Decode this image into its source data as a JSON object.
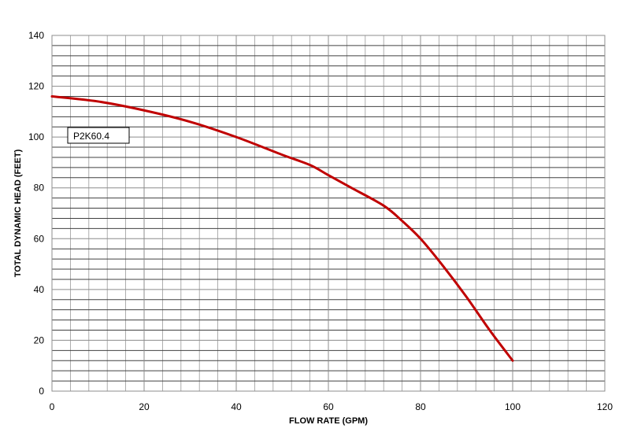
{
  "chart_data": {
    "type": "line",
    "title": "",
    "xlabel": "FLOW RATE (GPM)",
    "ylabel": "TOTAL DYNAMIC HEAD (FEET)",
    "xlim": [
      0,
      120
    ],
    "ylim": [
      0,
      140
    ],
    "x_ticks": [
      0,
      20,
      40,
      60,
      80,
      100,
      120
    ],
    "y_ticks": [
      0,
      20,
      40,
      60,
      80,
      100,
      120,
      140
    ],
    "x_ticks_labels": [
      "0",
      "20",
      "40",
      "60",
      "80",
      "100",
      "120"
    ],
    "y_ticks_labels": [
      "0",
      "20",
      "40",
      "60",
      "80",
      "100",
      "120",
      "140"
    ],
    "grid": true,
    "grid_minor_x_step": 4,
    "grid_minor_y_step": 4,
    "legend_placement": "upper-left",
    "series": [
      {
        "name": "P2K60.4",
        "color": "#c00000",
        "x": [
          0,
          10,
          20,
          30,
          40,
          50,
          56,
          60,
          65,
          72,
          76,
          80,
          85,
          90,
          95,
          100
        ],
        "y": [
          116,
          114,
          110.5,
          106,
          100,
          93,
          89,
          85,
          80,
          73,
          67,
          60,
          49,
          37,
          24,
          12
        ]
      }
    ]
  }
}
